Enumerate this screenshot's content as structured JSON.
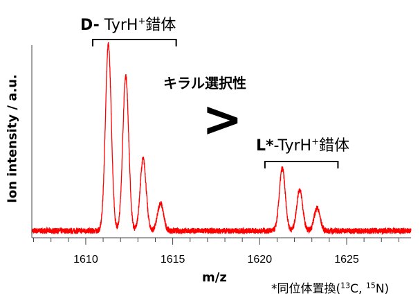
{
  "chart_data": {
    "type": "line",
    "xlabel": "m/z",
    "ylabel": "Ion intensity / a.u.",
    "xlim": [
      1606.9,
      1628.7
    ],
    "ylim": [
      0,
      1
    ],
    "x_ticks": [
      1610,
      1615,
      1620,
      1625
    ],
    "x_minor_tick_step": 1,
    "y_tick_labels": false,
    "grid": false,
    "line_color": "#ff0000",
    "baseline": 0.036,
    "peaks": [
      {
        "mz": 1611.3,
        "intensity": 1.0
      },
      {
        "mz": 1612.3,
        "intensity": 0.84
      },
      {
        "mz": 1613.3,
        "intensity": 0.41
      },
      {
        "mz": 1614.3,
        "intensity": 0.18
      },
      {
        "mz": 1621.3,
        "intensity": 0.36
      },
      {
        "mz": 1622.3,
        "intensity": 0.25
      },
      {
        "mz": 1623.3,
        "intensity": 0.155
      }
    ],
    "annotations": {
      "d_label_bold": "D-",
      "d_label": " TyrH",
      "d_sup": "+",
      "d_suffix": "錯体",
      "d_range": [
        1610.4,
        1615.2
      ],
      "l_label_bold": "L*",
      "l_label": "-TyrH",
      "l_sup": "+",
      "l_suffix": "錯体",
      "l_range": [
        1620.3,
        1624.5
      ],
      "selectivity": "キラル選択性",
      "comparison": ">",
      "footnote_pre": "*同位体置換(",
      "footnote_sup1": "13",
      "footnote_mid": "C, ",
      "footnote_sup2": "15",
      "footnote_post": "N)"
    }
  }
}
